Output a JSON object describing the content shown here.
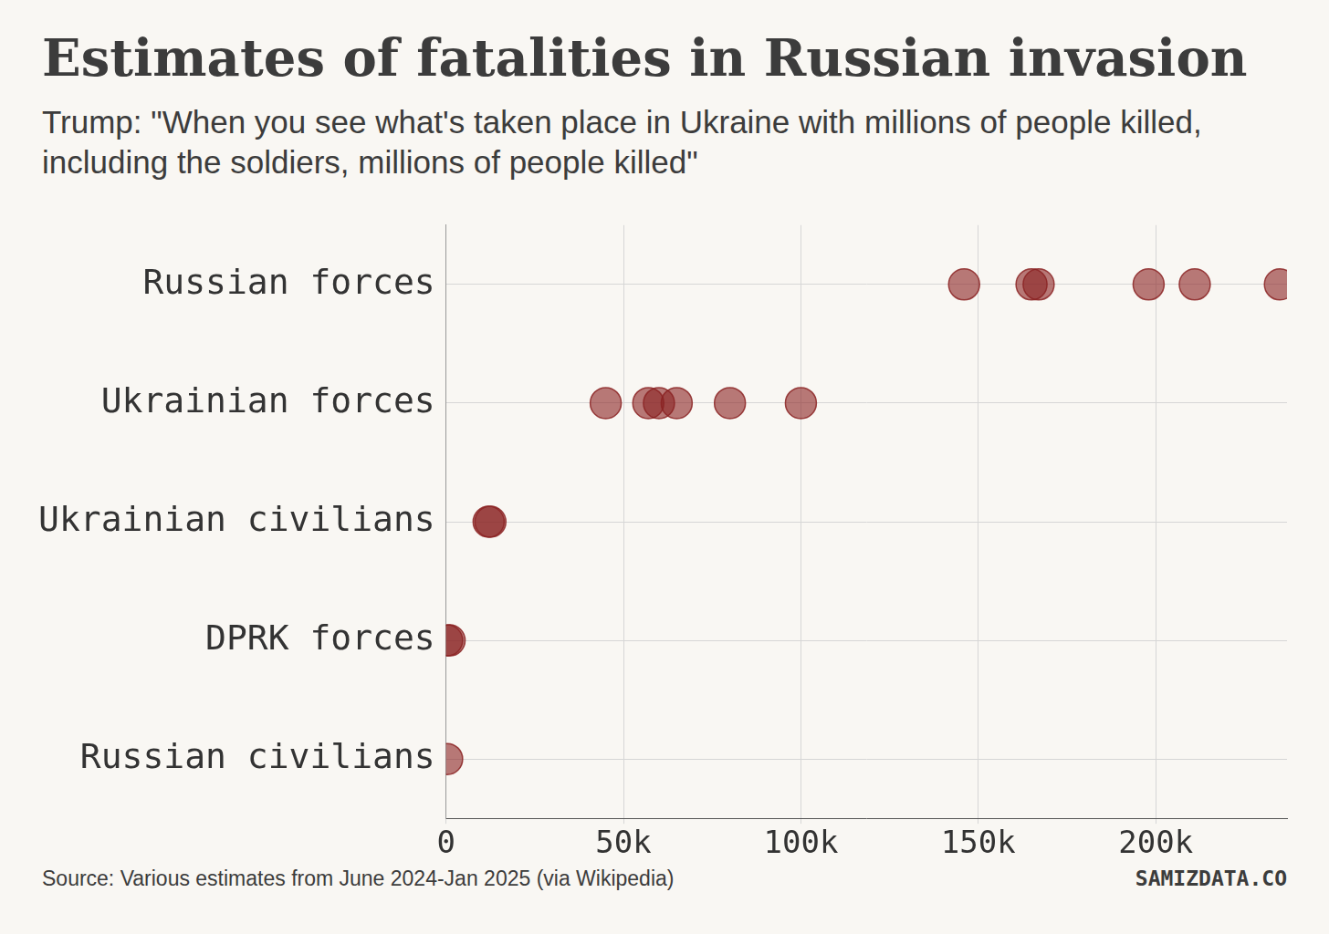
{
  "chart_data": {
    "type": "strip",
    "title": "Estimates of fatalities in Russian invasion",
    "subtitle": "Trump: \"When you see what's taken place in Ukraine with millions of people killed, including the soldiers, millions of people killed\"",
    "source": "Source: Various estimates from June 2024-Jan 2025 (via Wikipedia)",
    "credit": "SAMIZDATA.CO",
    "orientation": "horizontal",
    "categories": [
      "Russian forces",
      "Ukrainian forces",
      "Ukrainian civilians",
      "DPRK forces",
      "Russian civilians"
    ],
    "values": [
      [
        146000,
        165000,
        167000,
        198000,
        211000,
        235000
      ],
      [
        45000,
        57000,
        60000,
        65000,
        80000,
        100000
      ],
      [
        12000,
        12500
      ],
      [
        300,
        1000
      ],
      [
        300
      ]
    ],
    "color": "#8b2323",
    "marker": "circle",
    "xlim": [
      0,
      237000
    ],
    "xticks": [
      0,
      {
        "value": 50000,
        "label": "50k"
      },
      {
        "value": 100000,
        "label": "100k"
      },
      {
        "value": 150000,
        "label": "150k"
      },
      {
        "value": 200000,
        "label": "200k"
      }
    ],
    "grid": true
  }
}
